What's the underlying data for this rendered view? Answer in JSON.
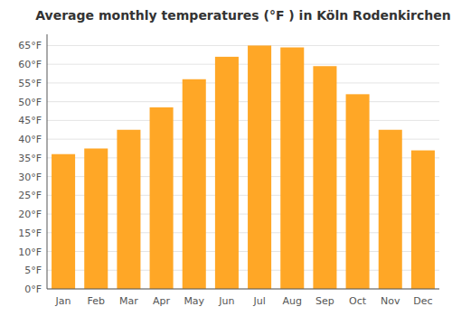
{
  "chart_data": {
    "type": "bar",
    "title": "Average monthly temperatures (°F ) in Köln Rodenkirchen",
    "categories": [
      "Jan",
      "Feb",
      "Mar",
      "Apr",
      "May",
      "Jun",
      "Jul",
      "Aug",
      "Sep",
      "Oct",
      "Nov",
      "Dec"
    ],
    "values": [
      36,
      37.5,
      42.5,
      48.5,
      56,
      62,
      65,
      64.5,
      59.5,
      52,
      42.5,
      37
    ],
    "color": "#FFA726",
    "ylim": [
      0,
      68
    ],
    "yticks": [
      {
        "value": 0,
        "label": "0°F"
      },
      {
        "value": 5,
        "label": "5°F"
      },
      {
        "value": 10,
        "label": "10°F"
      },
      {
        "value": 15,
        "label": "15°F"
      },
      {
        "value": 20,
        "label": "20°F"
      },
      {
        "value": 25,
        "label": "25°F"
      },
      {
        "value": 30,
        "label": "30°F"
      },
      {
        "value": 35,
        "label": "35°F"
      },
      {
        "value": 40,
        "label": "40°F"
      },
      {
        "value": 45,
        "label": "45°F"
      },
      {
        "value": 50,
        "label": "50°F"
      },
      {
        "value": 55,
        "label": "55°F"
      },
      {
        "value": 60,
        "label": "60°F"
      },
      {
        "value": 65,
        "label": "65°F"
      }
    ],
    "grid": true
  }
}
